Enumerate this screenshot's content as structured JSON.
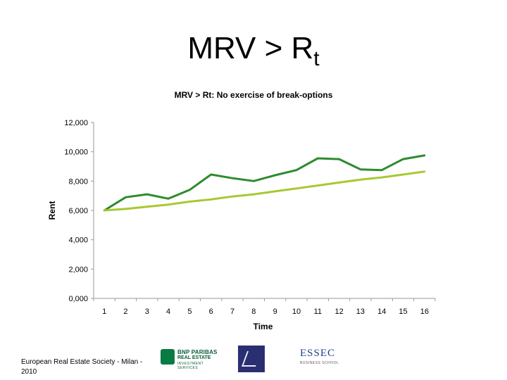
{
  "slide": {
    "title_main": "MRV > R",
    "title_sub": "t"
  },
  "footer": {
    "text": "European Real Estate Society - Milan - 2010"
  },
  "logos": {
    "bnp": {
      "line1": "BNP PARIBAS",
      "line2": "REAL ESTATE",
      "line3": "INVESTMENT SERVICES",
      "color": "#0a7a43"
    },
    "eres": {
      "color": "#2a2f72"
    },
    "essec": {
      "name": "ESSEC",
      "sub": "BUSINESS SCHOOL"
    }
  },
  "chart_data": {
    "type": "line",
    "title": "MRV > Rt: No exercise of break-options",
    "xlabel": "Time",
    "ylabel": "Rent",
    "categories": [
      "1",
      "2",
      "3",
      "4",
      "5",
      "6",
      "7",
      "8",
      "9",
      "10",
      "11",
      "12",
      "13",
      "14",
      "15",
      "16"
    ],
    "ylim": [
      0,
      12000
    ],
    "yticks": [
      0,
      2000,
      4000,
      6000,
      8000,
      10000,
      12000
    ],
    "ytick_labels": [
      "0,000",
      "2,000",
      "4,000",
      "6,000",
      "8,000",
      "10,000",
      "12,000"
    ],
    "grid": false,
    "series": [
      {
        "color": "#2e8b2e",
        "values": [
          6000,
          6900,
          7100,
          6800,
          7400,
          8450,
          8200,
          8000,
          8400,
          8750,
          9550,
          9500,
          8800,
          8750,
          9500,
          9750
        ]
      },
      {
        "color": "#a8c832",
        "values": [
          6000,
          6100,
          6250,
          6400,
          6600,
          6750,
          6950,
          7100,
          7300,
          7500,
          7700,
          7900,
          8100,
          8250,
          8450,
          8650
        ]
      }
    ]
  }
}
